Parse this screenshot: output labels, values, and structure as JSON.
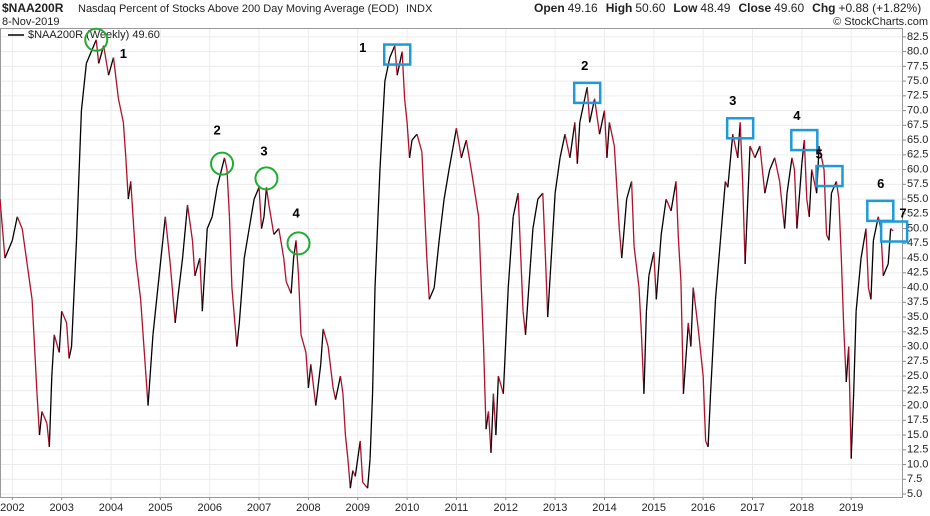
{
  "chart_data": {
    "type": "line",
    "symbol": "$NAA200R",
    "title": "Nasdaq Percent of Stocks Above 200 Day Moving Average (EOD)",
    "exchange": "INDX",
    "date": "8-Nov-2019",
    "quote": [
      {
        "label": "Open",
        "text": "49.16"
      },
      {
        "label": "High",
        "text": "50.60"
      },
      {
        "label": "Low",
        "text": "48.49"
      },
      {
        "label": "Close",
        "text": "49.60"
      },
      {
        "label": "Chg",
        "text": "+0.88 (+1.82%)"
      }
    ],
    "credit": "© StockCharts.com",
    "colors": {
      "up": "#000000",
      "down": "#b0102c"
    },
    "grid": true,
    "xlim": [
      2001.75,
      2020.05
    ],
    "ylim": [
      4.5,
      84
    ],
    "xticks": [
      2002,
      2003,
      2004,
      2005,
      2006,
      2007,
      2008,
      2009,
      2010,
      2011,
      2012,
      2013,
      2014,
      2015,
      2016,
      2017,
      2018,
      2019
    ],
    "yticks": [
      {
        "value": 5,
        "label": "5.0"
      },
      7.5,
      {
        "value": 10,
        "label": "10.0"
      },
      12.5,
      {
        "value": 15,
        "label": "15.0"
      },
      17.5,
      {
        "value": 20,
        "label": "20.0"
      },
      22.5,
      {
        "value": 25,
        "label": "25.0"
      },
      27.5,
      {
        "value": 30,
        "label": "30.0"
      },
      32.5,
      {
        "value": 35,
        "label": "35.0"
      },
      37.5,
      {
        "value": 40,
        "label": "40.0"
      },
      42.5,
      {
        "value": 45,
        "label": "45.0"
      },
      47.5,
      {
        "value": 50,
        "label": "50.0"
      },
      52.5,
      {
        "value": 55,
        "label": "55.0"
      },
      57.5,
      {
        "value": 60,
        "label": "60.0"
      },
      62.5,
      {
        "value": 65,
        "label": "65.0"
      },
      67.5,
      {
        "value": 70,
        "label": "70.0"
      },
      72.5,
      {
        "value": 75,
        "label": "75.0"
      },
      77.5,
      {
        "value": 80,
        "label": "80.0"
      },
      82.5
    ],
    "x": [
      2001.75,
      2001.85,
      2002.0,
      2002.1,
      2002.2,
      2002.3,
      2002.4,
      2002.5,
      2002.55,
      2002.6,
      2002.7,
      2002.75,
      2002.8,
      2002.85,
      2002.95,
      2003.0,
      2003.1,
      2003.15,
      2003.2,
      2003.3,
      2003.4,
      2003.5,
      2003.6,
      2003.7,
      2003.75,
      2003.85,
      2003.95,
      2004.05,
      2004.15,
      2004.25,
      2004.3,
      2004.35,
      2004.4,
      2004.5,
      2004.6,
      2004.7,
      2004.75,
      2004.85,
      2004.95,
      2005.05,
      2005.1,
      2005.2,
      2005.3,
      2005.35,
      2005.45,
      2005.55,
      2005.65,
      2005.7,
      2005.8,
      2005.85,
      2005.95,
      2006.05,
      2006.15,
      2006.3,
      2006.35,
      2006.4,
      2006.45,
      2006.55,
      2006.6,
      2006.7,
      2006.8,
      2006.9,
      2007.0,
      2007.05,
      2007.1,
      2007.15,
      2007.2,
      2007.3,
      2007.4,
      2007.5,
      2007.55,
      2007.65,
      2007.7,
      2007.75,
      2007.8,
      2007.85,
      2007.95,
      2008.0,
      2008.05,
      2008.15,
      2008.25,
      2008.3,
      2008.4,
      2008.5,
      2008.55,
      2008.65,
      2008.7,
      2008.75,
      2008.8,
      2008.85,
      2008.9,
      2008.95,
      2009.05,
      2009.1,
      2009.2,
      2009.25,
      2009.3,
      2009.35,
      2009.45,
      2009.55,
      2009.65,
      2009.75,
      2009.8,
      2009.9,
      2009.95,
      2010.0,
      2010.05,
      2010.1,
      2010.2,
      2010.3,
      2010.4,
      2010.45,
      2010.55,
      2010.65,
      2010.75,
      2010.85,
      2011.0,
      2011.1,
      2011.2,
      2011.3,
      2011.45,
      2011.55,
      2011.6,
      2011.65,
      2011.7,
      2011.75,
      2011.8,
      2011.85,
      2011.95,
      2012.05,
      2012.15,
      2012.25,
      2012.3,
      2012.35,
      2012.4,
      2012.5,
      2012.55,
      2012.65,
      2012.75,
      2012.8,
      2012.85,
      2012.9,
      2013.0,
      2013.1,
      2013.2,
      2013.3,
      2013.4,
      2013.45,
      2013.5,
      2013.6,
      2013.65,
      2013.7,
      2013.8,
      2013.9,
      2014.0,
      2014.05,
      2014.1,
      2014.2,
      2014.3,
      2014.35,
      2014.45,
      2014.55,
      2014.6,
      2014.7,
      2014.75,
      2014.8,
      2014.85,
      2014.9,
      2015.0,
      2015.05,
      2015.15,
      2015.25,
      2015.35,
      2015.45,
      2015.5,
      2015.55,
      2015.6,
      2015.65,
      2015.7,
      2015.75,
      2015.8,
      2015.9,
      2016.0,
      2016.05,
      2016.1,
      2016.15,
      2016.25,
      2016.35,
      2016.45,
      2016.5,
      2016.6,
      2016.7,
      2016.75,
      2016.8,
      2016.85,
      2016.9,
      2016.95,
      2017.05,
      2017.15,
      2017.25,
      2017.35,
      2017.45,
      2017.55,
      2017.65,
      2017.7,
      2017.8,
      2017.85,
      2017.9,
      2018.0,
      2018.05,
      2018.1,
      2018.15,
      2018.2,
      2018.3,
      2018.35,
      2018.45,
      2018.5,
      2018.55,
      2018.6,
      2018.7,
      2018.75,
      2018.8,
      2018.85,
      2018.9,
      2018.95,
      2019.0,
      2019.05,
      2019.1,
      2019.2,
      2019.3,
      2019.35,
      2019.4,
      2019.45,
      2019.55,
      2019.6,
      2019.65,
      2019.75,
      2019.8,
      2019.85
    ],
    "series": [
      {
        "name": "$NAA200R (Weekly) 49.60",
        "values": [
          55,
          45,
          48,
          52,
          50,
          44,
          38,
          22,
          15,
          19,
          17,
          13,
          25,
          32,
          29,
          36,
          34,
          28,
          30,
          48,
          70,
          78,
          80,
          82,
          78,
          81,
          76,
          79,
          72,
          68,
          62,
          55,
          58,
          45,
          38,
          26,
          20,
          32,
          40,
          48,
          52,
          44,
          34,
          38,
          45,
          54,
          48,
          42,
          45,
          36,
          50,
          52,
          57,
          62,
          60,
          52,
          40,
          30,
          34,
          45,
          50,
          55,
          57,
          50,
          52,
          57,
          54,
          49,
          50,
          45,
          41,
          39,
          45,
          48,
          42,
          32,
          29,
          23,
          27,
          20,
          27,
          33,
          30,
          23,
          21,
          25,
          22,
          15,
          11,
          6,
          9,
          8,
          14,
          7,
          6,
          11,
          22,
          40,
          60,
          75,
          79,
          81,
          76,
          80,
          72,
          68,
          62,
          65,
          66,
          63,
          45,
          38,
          40,
          48,
          55,
          60,
          67,
          62,
          65,
          60,
          52,
          30,
          16,
          19,
          12,
          22,
          15,
          25,
          22,
          40,
          52,
          56,
          46,
          36,
          32,
          44,
          50,
          55,
          56,
          46,
          35,
          42,
          56,
          62,
          66,
          62,
          68,
          61,
          68,
          72,
          74,
          68,
          72,
          66,
          70,
          62,
          68,
          64,
          50,
          45,
          55,
          58,
          47,
          40,
          32,
          22,
          36,
          42,
          46,
          38,
          49,
          55,
          53,
          58,
          48,
          41,
          22,
          28,
          34,
          30,
          40,
          33,
          25,
          14,
          13,
          22,
          38,
          48,
          58,
          57,
          66,
          62,
          68,
          58,
          44,
          54,
          64,
          62,
          64,
          56,
          60,
          62,
          58,
          50,
          56,
          62,
          60,
          50,
          61,
          65,
          55,
          52,
          60,
          56,
          64,
          60,
          49,
          48,
          56,
          58,
          55,
          45,
          33,
          24,
          30,
          11,
          22,
          36,
          45,
          50,
          40,
          38,
          48,
          52,
          50,
          42,
          44,
          50,
          49.6
        ]
      }
    ],
    "annotations": [
      {
        "shape": "circle",
        "label": "1",
        "x": 2003.7,
        "y": 82,
        "lx": 2004.25,
        "ly": 79.5
      },
      {
        "shape": "circle",
        "label": "2",
        "x": 2006.25,
        "y": 61,
        "lx": 2006.15,
        "ly": 66.5
      },
      {
        "shape": "circle",
        "label": "3",
        "x": 2007.15,
        "y": 58.5,
        "lx": 2007.1,
        "ly": 63
      },
      {
        "shape": "circle",
        "label": "4",
        "x": 2007.8,
        "y": 47.5,
        "lx": 2007.75,
        "ly": 52.5
      },
      {
        "shape": "square",
        "label": "1",
        "x": 2009.8,
        "y": 79.5,
        "lx": 2009.1,
        "ly": 80.5
      },
      {
        "shape": "square",
        "label": "2",
        "x": 2013.65,
        "y": 73,
        "lx": 2013.6,
        "ly": 77.5
      },
      {
        "shape": "square",
        "label": "3",
        "x": 2016.75,
        "y": 67,
        "lx": 2016.6,
        "ly": 71.5
      },
      {
        "shape": "square",
        "label": "4",
        "x": 2018.05,
        "y": 65,
        "lx": 2017.9,
        "ly": 69
      },
      {
        "shape": "square",
        "label": "5",
        "x": 2018.56,
        "y": 58.9,
        "lx": 2018.35,
        "ly": 62.5
      },
      {
        "shape": "square",
        "label": "6",
        "x": 2019.59,
        "y": 53,
        "lx": 2019.6,
        "ly": 57.5
      },
      {
        "shape": "square",
        "label": "7",
        "x": 2019.87,
        "y": 49.5,
        "lx": 2020.05,
        "ly": 52.5
      }
    ]
  }
}
